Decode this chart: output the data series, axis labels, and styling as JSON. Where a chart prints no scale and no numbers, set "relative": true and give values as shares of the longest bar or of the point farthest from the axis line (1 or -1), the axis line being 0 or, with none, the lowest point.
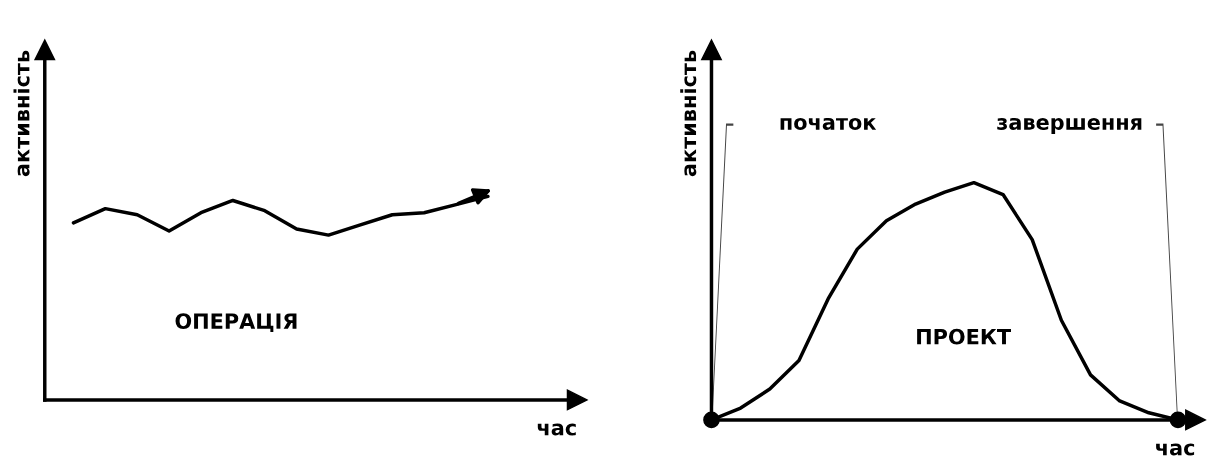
{
  "chart_data": [
    {
      "type": "line",
      "relative": true,
      "xlabel": "час",
      "ylabel": "активність",
      "annotations": [
        "ОПЕРАЦІЯ"
      ],
      "legend": false,
      "categories": [
        null,
        null,
        null,
        null,
        null,
        null,
        null,
        null,
        null,
        null,
        null,
        null,
        null,
        null
      ],
      "series": [
        {
          "color": "#000000",
          "values": [
            0.87,
            0.94,
            0.91,
            0.83,
            0.92,
            0.98,
            0.93,
            0.84,
            0.81,
            0.86,
            0.91,
            0.92,
            0.96,
            1.0
          ]
        }
      ]
    },
    {
      "type": "line",
      "relative": true,
      "xlabel": "час",
      "ylabel": "активність",
      "annotations": [
        "ПРОЕКТ",
        "початок",
        "завершення"
      ],
      "legend": false,
      "categories": [
        null,
        null,
        null,
        null,
        null,
        null,
        null,
        null,
        null,
        null,
        null,
        null,
        null,
        null,
        null,
        null,
        null
      ],
      "series": [
        {
          "color": "#000000",
          "values": [
            0,
            0.05,
            0.13,
            0.25,
            0.51,
            0.72,
            0.84,
            0.91,
            0.96,
            1.0,
            0.95,
            0.76,
            0.42,
            0.19,
            0.08,
            0.03,
            0
          ]
        }
      ]
    }
  ]
}
